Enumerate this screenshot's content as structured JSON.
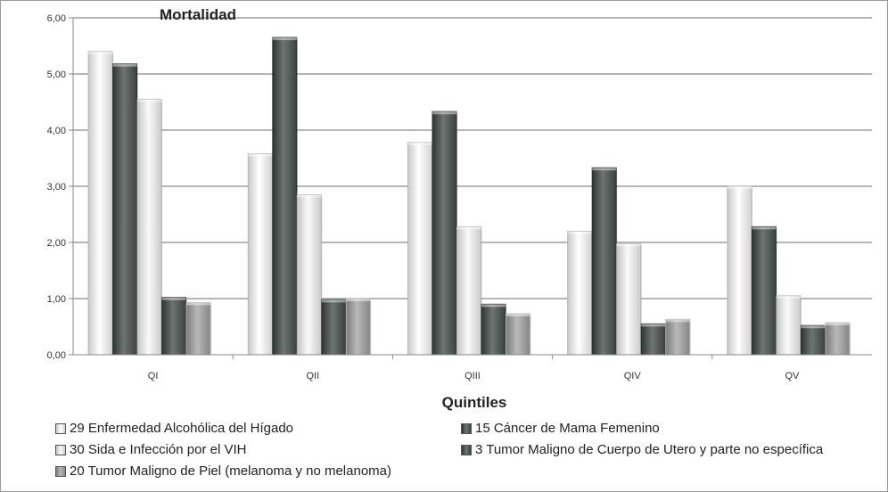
{
  "chart_data": {
    "type": "bar",
    "title": "Mortalidad",
    "xlabel": "Quintiles",
    "ylabel": "",
    "ylim": [
      0,
      6
    ],
    "yticks": [
      "0,00",
      "1,00",
      "2,00",
      "3,00",
      "4,00",
      "5,00",
      "6,00"
    ],
    "grid": true,
    "legend_position": "bottom",
    "categories": [
      "QI",
      "QII",
      "QIII",
      "QIV",
      "QV"
    ],
    "series": [
      {
        "name": "29 Enfermedad Alcohólica del Hígado",
        "color": "#e6e6e6",
        "values": [
          5.4,
          3.58,
          3.78,
          2.2,
          3.0
        ]
      },
      {
        "name": "15 Cáncer de Mama Femenino",
        "color": "#4a524f",
        "values": [
          5.18,
          5.65,
          4.33,
          3.33,
          2.28
        ]
      },
      {
        "name": "30 Sida e Infección por el VIH",
        "color": "#e0e0e0",
        "values": [
          4.55,
          2.85,
          2.28,
          1.98,
          1.05
        ]
      },
      {
        "name": "3 Tumor Maligno de Cuerpo de Utero y parte no específica",
        "color": "#4a524f",
        "values": [
          1.02,
          0.98,
          0.9,
          0.55,
          0.52
        ]
      },
      {
        "name": "20 Tumor Maligno de Piel (melanoma y no melanoma)",
        "color": "#9a9a9a",
        "values": [
          0.93,
          1.0,
          0.73,
          0.63,
          0.57
        ]
      }
    ]
  }
}
